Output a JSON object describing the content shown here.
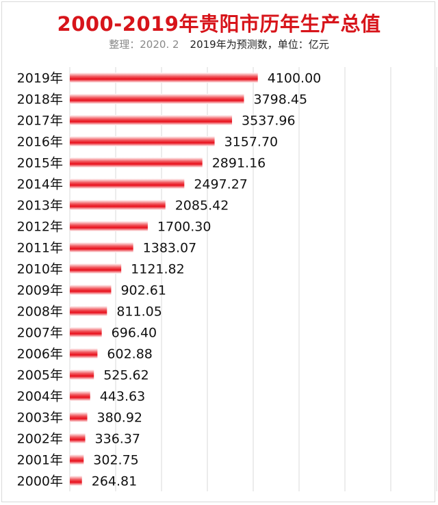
{
  "chart_data": {
    "type": "bar",
    "orientation": "horizontal",
    "title": "2000-2019年贵阳市历年生产总值",
    "subtitle_note": "整理：2020. 2",
    "subtitle": "2019年为预测数，单位：亿元",
    "xlim": [
      0,
      8000
    ],
    "grid": true,
    "bar_color": "#e8101c",
    "categories": [
      "2019年",
      "2018年",
      "2017年",
      "2016年",
      "2015年",
      "2014年",
      "2013年",
      "2012年",
      "2011年",
      "2010年",
      "2009年",
      "2008年",
      "2007年",
      "2006年",
      "2005年",
      "2004年",
      "2003年",
      "2002年",
      "2001年",
      "2000年"
    ],
    "values": [
      4100.0,
      3798.45,
      3537.96,
      3157.7,
      2891.16,
      2497.27,
      2085.42,
      1700.3,
      1383.07,
      1121.82,
      902.61,
      811.05,
      696.4,
      602.88,
      525.62,
      443.63,
      380.92,
      336.37,
      302.75,
      264.81
    ],
    "value_labels": [
      "4100.00",
      "3798.45",
      "3537.96",
      "3157.70",
      "2891.16",
      "2497.27",
      "2085.42",
      "1700.30",
      "1383.07",
      "1121.82",
      "902.61",
      "811.05",
      "696.40",
      "602.88",
      "525.62",
      "443.63",
      "380.92",
      "336.37",
      "302.75",
      "264.81"
    ]
  }
}
